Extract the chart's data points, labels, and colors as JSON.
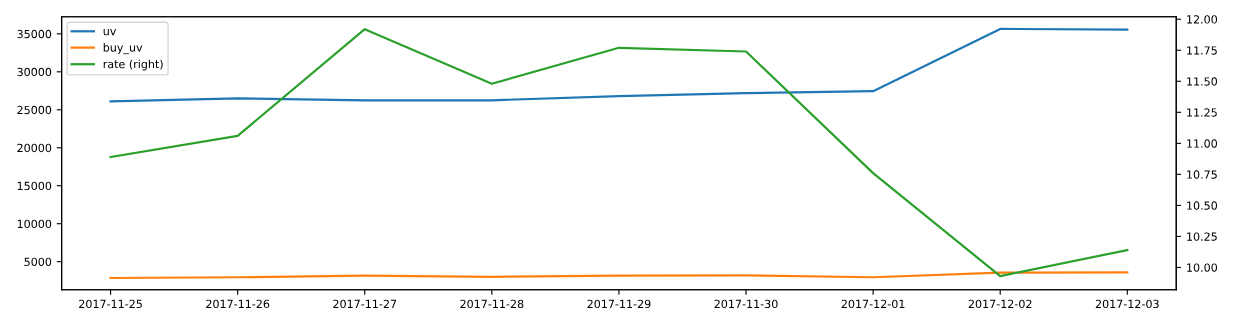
{
  "chart_data": {
    "type": "line",
    "categories": [
      "2017-11-25",
      "2017-11-26",
      "2017-11-27",
      "2017-11-28",
      "2017-11-29",
      "2017-11-30",
      "2017-12-01",
      "2017-12-02",
      "2017-12-03"
    ],
    "series": [
      {
        "name": "uv",
        "color": "#1f77b4",
        "values": [
          26100,
          26500,
          26250,
          26250,
          26800,
          27200,
          27450,
          35650,
          35550
        ]
      },
      {
        "name": "buy_uv",
        "color": "#ff7f0e",
        "values": [
          2850,
          2950,
          3150,
          3000,
          3150,
          3200,
          2950,
          3550,
          3600
        ]
      },
      {
        "name": "rate (right)",
        "color": "#2ca02c",
        "axis": "y2",
        "values": [
          10.89,
          11.06,
          11.92,
          11.48,
          11.77,
          11.74,
          10.76,
          9.93,
          10.14
        ]
      }
    ],
    "ylim": [
      1300,
      37250
    ],
    "yticks": [
      5000,
      10000,
      15000,
      20000,
      25000,
      30000,
      35000
    ],
    "y2lim": [
      9.82,
      12.02
    ],
    "y2ticks": [
      {
        "value": 10,
        "label": "10.00"
      },
      {
        "value": 10.25,
        "label": "10.25"
      },
      {
        "value": 10.5,
        "label": "10.50"
      },
      {
        "value": 10.75,
        "label": "10.75"
      },
      {
        "value": 11,
        "label": "11.00"
      },
      {
        "value": 11.25,
        "label": "11.25"
      },
      {
        "value": 11.5,
        "label": "11.50"
      },
      {
        "value": 11.75,
        "label": "11.75"
      },
      {
        "value": 12,
        "label": "12.00"
      }
    ],
    "legend": "top left",
    "grid": false
  }
}
